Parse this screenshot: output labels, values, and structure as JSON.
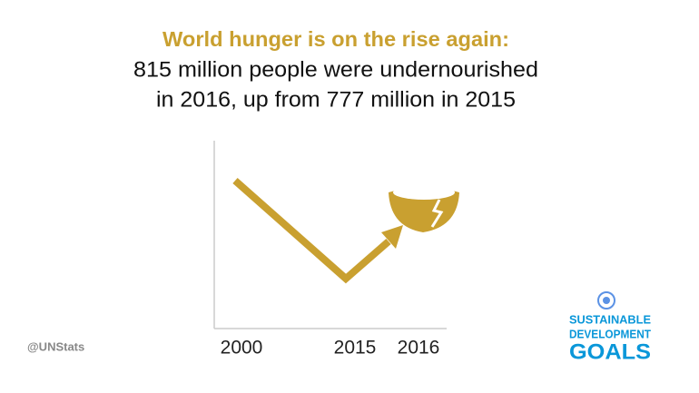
{
  "header": {
    "title": "World hunger is on the rise again:",
    "subtitle_lines": [
      "815 million people were undernourished",
      "in 2016, up from 777 million in 2015"
    ]
  },
  "chart": {
    "x_labels": [
      "2000",
      "2015",
      "2016"
    ]
  },
  "footer": {
    "handle": "@UNStats"
  },
  "logo": {
    "lines": [
      "SUSTAINABLE",
      "DEVELOPMENT",
      "GOALS"
    ]
  }
}
